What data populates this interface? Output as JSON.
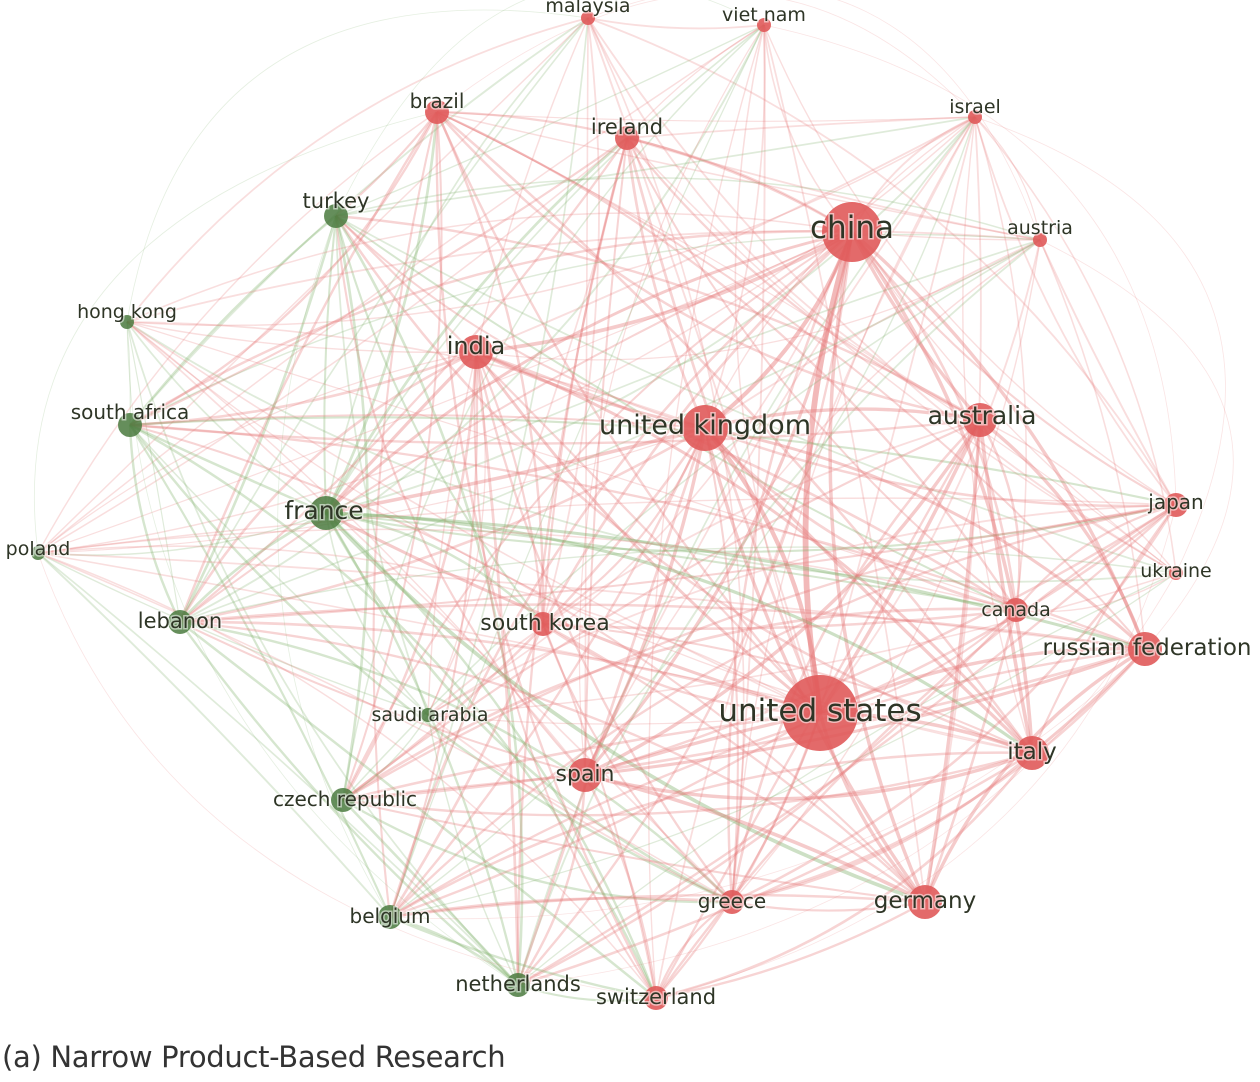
{
  "caption": "(a) Narrow Product-Based Research",
  "colors": {
    "cluster_red": "#e05a5a",
    "cluster_green": "#5a9a4c",
    "edge_red": "#e67a7a",
    "edge_green": "#7fb06a",
    "label_text": "#2e3526"
  },
  "nodes": [
    {
      "id": "malaysia",
      "label": "malaysia",
      "cluster": "red",
      "size": 1
    },
    {
      "id": "viet_nam",
      "label": "viet nam",
      "cluster": "red",
      "size": 1
    },
    {
      "id": "brazil",
      "label": "brazil",
      "cluster": "red",
      "size": 2
    },
    {
      "id": "ireland",
      "label": "ireland",
      "cluster": "red",
      "size": 2
    },
    {
      "id": "israel",
      "label": "israel",
      "cluster": "red",
      "size": 1
    },
    {
      "id": "turkey",
      "label": "turkey",
      "cluster": "green",
      "size": 2
    },
    {
      "id": "china",
      "label": "china",
      "cluster": "red",
      "size": 5
    },
    {
      "id": "austria",
      "label": "austria",
      "cluster": "red",
      "size": 1
    },
    {
      "id": "hong_kong",
      "label": "hong kong",
      "cluster": "green",
      "size": 1
    },
    {
      "id": "india",
      "label": "india",
      "cluster": "red",
      "size": 3
    },
    {
      "id": "south_africa",
      "label": "south africa",
      "cluster": "green",
      "size": 2
    },
    {
      "id": "united_kingdom",
      "label": "united kingdom",
      "cluster": "red",
      "size": 4
    },
    {
      "id": "australia",
      "label": "australia",
      "cluster": "red",
      "size": 3
    },
    {
      "id": "france",
      "label": "france",
      "cluster": "green",
      "size": 3
    },
    {
      "id": "japan",
      "label": "japan",
      "cluster": "red",
      "size": 2
    },
    {
      "id": "poland",
      "label": "poland",
      "cluster": "green",
      "size": 1
    },
    {
      "id": "ukraine",
      "label": "ukraine",
      "cluster": "red",
      "size": 1
    },
    {
      "id": "lebanon",
      "label": "lebanon",
      "cluster": "green",
      "size": 2
    },
    {
      "id": "south_korea",
      "label": "south korea",
      "cluster": "red",
      "size": 2
    },
    {
      "id": "canada",
      "label": "canada",
      "cluster": "red",
      "size": 2
    },
    {
      "id": "russian_federation",
      "label": "russian federation",
      "cluster": "red",
      "size": 3
    },
    {
      "id": "saudi_arabia",
      "label": "saudi arabia",
      "cluster": "green",
      "size": 1
    },
    {
      "id": "united_states",
      "label": "united states",
      "cluster": "red",
      "size": 6
    },
    {
      "id": "spain",
      "label": "spain",
      "cluster": "red",
      "size": 3
    },
    {
      "id": "italy",
      "label": "italy",
      "cluster": "red",
      "size": 3
    },
    {
      "id": "czech_republic",
      "label": "czech republic",
      "cluster": "green",
      "size": 2
    },
    {
      "id": "greece",
      "label": "greece",
      "cluster": "red",
      "size": 2
    },
    {
      "id": "germany",
      "label": "germany",
      "cluster": "red",
      "size": 3
    },
    {
      "id": "belgium",
      "label": "belgium",
      "cluster": "green",
      "size": 2
    },
    {
      "id": "netherlands",
      "label": "netherlands",
      "cluster": "green",
      "size": 2
    },
    {
      "id": "switzerland",
      "label": "switzerland",
      "cluster": "red",
      "size": 2
    }
  ]
}
